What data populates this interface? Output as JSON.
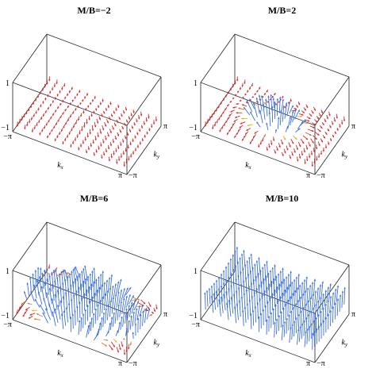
{
  "chart_data": [
    {
      "type": "3d-vector-field",
      "title": "M/B=−2",
      "ratio": -2,
      "xlabel": "k_x",
      "ylabel": "k_y",
      "xlim": [
        "−π",
        "π"
      ],
      "ylim": [
        "−π",
        "π"
      ],
      "zlim": [
        -1,
        1
      ],
      "z_ticks": [
        "1",
        "−1"
      ],
      "x_ticks": [
        "−π",
        "π"
      ],
      "y_ticks": [
        "−π",
        "π"
      ],
      "dominant_color": "#d42a2a"
    },
    {
      "type": "3d-vector-field",
      "title": "M/B=2",
      "ratio": 2,
      "xlabel": "k_x",
      "ylabel": "k_y",
      "xlim": [
        "−π",
        "π"
      ],
      "ylim": [
        "−π",
        "π"
      ],
      "zlim": [
        -1,
        1
      ],
      "z_ticks": [
        "1",
        "−1"
      ],
      "x_ticks": [
        "−π",
        "π"
      ],
      "y_ticks": [
        "−π",
        "π"
      ],
      "dominant_color": "#d42a2a"
    },
    {
      "type": "3d-vector-field",
      "title": "M/B=6",
      "ratio": 6,
      "xlabel": "k_x",
      "ylabel": "k_y",
      "xlim": [
        "−π",
        "π"
      ],
      "ylim": [
        "−π",
        "π"
      ],
      "zlim": [
        -1,
        1
      ],
      "z_ticks": [
        "1",
        "−1"
      ],
      "x_ticks": [
        "−π",
        "π"
      ],
      "y_ticks": [
        "−π",
        "π"
      ],
      "dominant_color": "#3a6fe0"
    },
    {
      "type": "3d-vector-field",
      "title": "M/B=10",
      "ratio": 10,
      "xlabel": "k_x",
      "ylabel": "k_y",
      "xlim": [
        "−π",
        "π"
      ],
      "ylim": [
        "−π",
        "π"
      ],
      "zlim": [
        -1,
        1
      ],
      "z_ticks": [
        "1",
        "−1"
      ],
      "x_ticks": [
        "−π",
        "π"
      ],
      "y_ticks": [
        "−π",
        "π"
      ],
      "dominant_color": "#3a6fe0"
    }
  ],
  "colors": {
    "up": "#3a6fe0",
    "down": "#d42a2a",
    "mid": "#f2b21c"
  }
}
